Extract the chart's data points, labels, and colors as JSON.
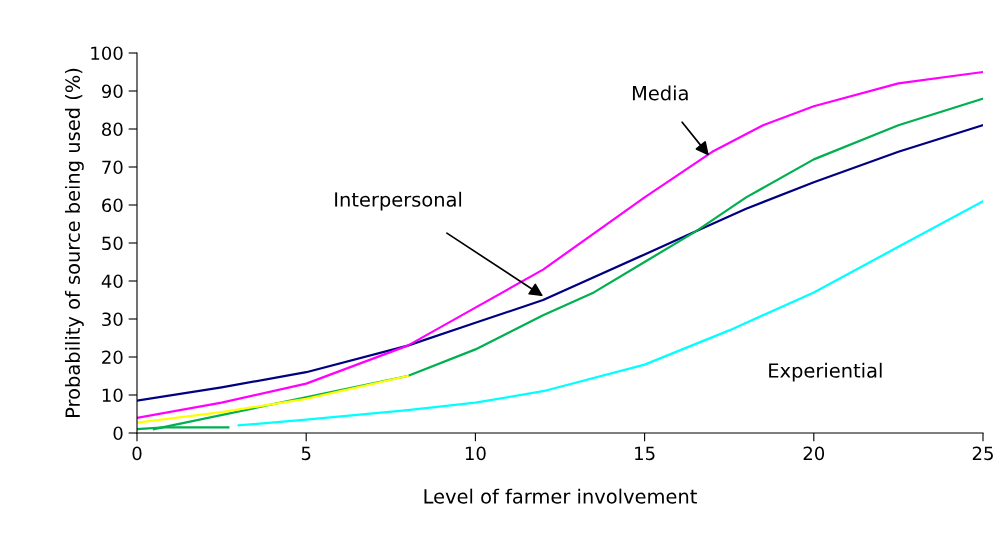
{
  "chart_data": {
    "type": "line",
    "xlabel": "Level of farmer involvement",
    "ylabel": "Probability of source being used (%)",
    "xlim": [
      0,
      25
    ],
    "xticks": [
      0,
      5,
      10,
      15,
      20,
      25
    ],
    "ylim": [
      0,
      100
    ],
    "yticks": [
      0,
      10,
      20,
      30,
      40,
      50,
      60,
      70,
      80,
      90,
      100
    ],
    "grid": false,
    "legend": false,
    "marker": "none",
    "line_style": "solid",
    "series": [
      {
        "color": "#000080",
        "x": [
          0,
          2.5,
          5,
          8,
          10,
          12,
          15,
          16.5,
          18,
          20,
          22.5,
          25
        ],
        "values": [
          8.5,
          12,
          16,
          23,
          29,
          35,
          47,
          53,
          59,
          66,
          74,
          81
        ]
      },
      {
        "color": "#ff00ff",
        "x": [
          0,
          2.5,
          5,
          8,
          10,
          12,
          15,
          17,
          18.5,
          20,
          22.5,
          25
        ],
        "values": [
          4,
          8,
          13,
          23,
          33,
          43,
          62,
          74,
          81,
          86,
          92,
          95
        ]
      },
      {
        "color": "#00b050",
        "x": [
          0.5,
          8,
          10,
          12,
          13.5,
          15,
          16.5,
          18,
          20,
          22.5,
          25
        ],
        "values": [
          1,
          15,
          22,
          31,
          37,
          45,
          53,
          62,
          72,
          81,
          88
        ]
      },
      {
        "color": "#00b050",
        "x": [
          0,
          0.8,
          2.7
        ],
        "values": [
          1,
          1.5,
          1.5
        ]
      },
      {
        "color": "#00ffff",
        "x": [
          3,
          5,
          8,
          10,
          12,
          15,
          17.5,
          20,
          22.5,
          25
        ],
        "values": [
          2,
          3.5,
          6,
          8,
          11,
          18,
          27,
          37,
          49,
          61
        ]
      },
      {
        "color": "#ffff00",
        "x": [
          0,
          2.5,
          5,
          8
        ],
        "values": [
          2.7,
          5.5,
          9,
          15
        ]
      }
    ],
    "annotations": [
      {
        "text": "Media",
        "x": 16.9,
        "y": 73
      },
      {
        "text": "Interpersonal",
        "x": 12,
        "y": 36
      },
      "Experiential"
    ]
  }
}
